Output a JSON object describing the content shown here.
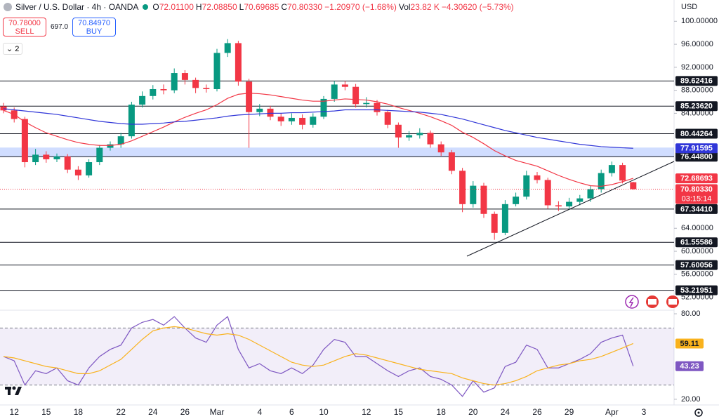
{
  "header": {
    "symbol": "Silver / U.S. Dollar · 4h · OANDA",
    "legend": [
      {
        "key": "O",
        "text": "72.01100"
      },
      {
        "key": "H",
        "text": "72.08850"
      },
      {
        "key": "L",
        "text": "70.69685"
      },
      {
        "key": "C",
        "text": "70.80330"
      },
      {
        "key": "",
        "text": "−1.20970 (−1.68%)"
      },
      {
        "key": "Vol",
        "text": "23.82 K"
      },
      {
        "key": "",
        "text": "−4.30620 (−5.73%)"
      }
    ],
    "indicator_count": "2",
    "currency": "USD"
  },
  "trade_panel": {
    "sell_price": "70.78000",
    "sell_label": "SELL",
    "spread": "697.0",
    "buy_price": "70.84970",
    "buy_label": "BUY"
  },
  "chart_data": [
    {
      "type": "candlestick",
      "categories": [
        null,
        "12",
        null,
        null,
        "15",
        null,
        null,
        "18",
        null,
        null,
        null,
        "22",
        null,
        null,
        "24",
        null,
        null,
        "26",
        null,
        null,
        "Mar",
        null,
        null,
        null,
        "4",
        null,
        null,
        "6",
        null,
        null,
        "10",
        null,
        null,
        null,
        "12",
        null,
        null,
        "15",
        null,
        null,
        null,
        "18",
        null,
        null,
        "20",
        null,
        null,
        "24",
        null,
        null,
        "26",
        null,
        null,
        "29",
        null,
        null,
        null,
        "Apr",
        null,
        null,
        "3"
      ],
      "open": [
        85.2,
        84.5,
        83.0,
        75.5,
        76.8,
        76.0,
        76.5,
        74.2,
        73.2,
        75.5,
        78.0,
        78.6,
        80.0,
        85.5,
        87.0,
        88.2,
        88.0,
        91.0,
        89.8,
        88.4,
        88.2,
        94.5,
        96.2,
        89.5,
        84.2,
        84.8,
        83.4,
        82.6,
        83.2,
        82.0,
        83.4,
        86.5,
        89.0,
        88.6,
        85.6,
        85.8,
        84.2,
        82.0,
        79.8,
        80.2,
        80.6,
        78.6,
        77.2,
        74.0,
        68.2,
        71.4,
        66.5,
        63.2,
        68.2,
        69.5,
        73.2,
        72.4,
        68.0,
        67.8,
        68.6,
        69.2,
        70.8,
        73.6,
        75.0,
        72.011,
        null
      ],
      "high": [
        85.8,
        85.0,
        83.4,
        77.8,
        77.4,
        77.0,
        76.9,
        74.8,
        76.0,
        78.5,
        79.1,
        80.6,
        86.0,
        87.8,
        88.9,
        89.0,
        91.8,
        91.5,
        90.2,
        89.0,
        95.2,
        96.9,
        96.6,
        90.0,
        85.6,
        85.3,
        84.0,
        84.0,
        83.8,
        84.0,
        87.0,
        89.6,
        89.6,
        89.1,
        86.8,
        86.3,
        84.6,
        82.4,
        80.9,
        81.4,
        81.0,
        79.1,
        77.6,
        74.5,
        72.2,
        71.9,
        66.9,
        68.9,
        70.2,
        74.0,
        73.8,
        72.8,
        68.7,
        69.3,
        69.8,
        71.4,
        74.2,
        75.6,
        75.4,
        72.0885,
        null
      ],
      "low": [
        84.0,
        82.4,
        74.6,
        75.0,
        75.4,
        75.5,
        73.6,
        72.4,
        72.8,
        75.0,
        77.5,
        78.0,
        79.6,
        85.0,
        86.4,
        87.3,
        87.5,
        89.0,
        87.5,
        87.6,
        87.8,
        93.8,
        88.8,
        78.0,
        83.5,
        82.8,
        81.8,
        82.0,
        81.2,
        81.5,
        83.0,
        86.0,
        88.0,
        85.0,
        85.0,
        83.6,
        81.4,
        78.0,
        79.2,
        79.6,
        78.0,
        76.6,
        73.4,
        66.8,
        67.6,
        65.8,
        62.0,
        62.8,
        67.8,
        69.0,
        71.8,
        67.4,
        67.0,
        67.2,
        68.0,
        68.6,
        70.2,
        73.0,
        71.8,
        70.69685,
        null
      ],
      "close": [
        84.5,
        83.0,
        75.5,
        76.8,
        76.0,
        76.5,
        74.2,
        73.2,
        75.5,
        78.0,
        78.6,
        80.0,
        85.5,
        87.0,
        88.2,
        88.0,
        91.0,
        89.8,
        88.4,
        88.2,
        94.5,
        96.2,
        89.5,
        84.2,
        84.8,
        83.4,
        82.6,
        83.2,
        82.0,
        83.4,
        86.5,
        89.0,
        88.6,
        85.6,
        85.8,
        84.2,
        82.0,
        79.8,
        80.2,
        80.6,
        78.6,
        77.2,
        74.0,
        68.2,
        71.4,
        66.5,
        63.2,
        68.2,
        69.5,
        73.2,
        72.4,
        68.0,
        67.8,
        68.6,
        69.2,
        70.8,
        73.6,
        75.0,
        72.3,
        70.8033,
        null
      ],
      "last_label": "70.80330",
      "countdown": "03:15:14",
      "up_color": "#089981",
      "down_color": "#f23645",
      "lines": [
        {
          "color": "#f23645",
          "values": [
            84.5,
            83.8,
            82.5,
            81.5,
            80.6,
            80.0,
            79.4,
            78.9,
            78.6,
            78.4,
            78.4,
            78.6,
            79.2,
            80.0,
            80.8,
            81.6,
            82.5,
            83.3,
            84.0,
            84.6,
            85.5,
            86.6,
            87.3,
            87.5,
            87.4,
            87.2,
            86.9,
            86.6,
            86.3,
            86.1,
            86.1,
            86.3,
            86.5,
            86.4,
            86.3,
            86.0,
            85.6,
            85.0,
            84.5,
            84.0,
            83.4,
            82.7,
            81.9,
            80.7,
            79.8,
            78.7,
            77.5,
            76.6,
            75.8,
            75.3,
            74.8,
            74.0,
            73.2,
            72.5,
            71.9,
            71.4,
            71.3,
            71.6,
            72.1,
            72.68693,
            null
          ]
        },
        {
          "color": "#3036d8",
          "values": [
            84.8,
            84.6,
            84.4,
            84.2,
            84.0,
            83.8,
            83.5,
            83.2,
            82.9,
            82.6,
            82.4,
            82.2,
            82.1,
            82.1,
            82.2,
            82.3,
            82.5,
            82.6,
            82.8,
            83.0,
            83.2,
            83.5,
            83.7,
            83.8,
            83.9,
            84.0,
            84.0,
            84.1,
            84.1,
            84.2,
            84.3,
            84.4,
            84.6,
            84.6,
            84.6,
            84.6,
            84.5,
            84.4,
            84.3,
            84.2,
            84.0,
            83.8,
            83.4,
            83.0,
            82.5,
            82.0,
            81.5,
            81.0,
            80.6,
            80.2,
            79.8,
            79.5,
            79.2,
            78.9,
            78.6,
            78.4,
            78.2,
            78.1,
            78.0,
            77.91595,
            null
          ]
        }
      ],
      "levels": [
        89.62416,
        {
          "value": 85.2362,
          "label": "85.23620"
        },
        80.44264,
        {
          "value": 76.448,
          "label": "76.44800"
        },
        {
          "value": 67.3441,
          "label": "67.34410"
        },
        61.55586,
        57.60056,
        53.21951
      ],
      "level_color": "#131722",
      "zone_color": "rgba(41,98,255,0.22)",
      "ylim": [
        49.75,
        103.7
      ],
      "yticks": [
        {
          "value": 100,
          "label": "100.00000"
        },
        {
          "value": 96,
          "label": "96.00000"
        },
        {
          "value": 92,
          "label": "92.00000"
        },
        {
          "value": 88,
          "label": "88.00000"
        },
        {
          "value": 84,
          "label": "84.00000"
        },
        {
          "value": 64,
          "label": "64.00000"
        },
        {
          "value": 60,
          "label": "60.00000"
        },
        {
          "value": 56,
          "label": "56.00000"
        },
        {
          "value": 52,
          "label": "52.00000"
        }
      ]
    },
    {
      "type": "line",
      "series": [
        {
          "color": "#7e57c2",
          "values": [
            50,
            47,
            30,
            40,
            38,
            42,
            33,
            30,
            42,
            50,
            55,
            58,
            70,
            74,
            76,
            72,
            78,
            70,
            63,
            60,
            72,
            78,
            55,
            42,
            45,
            40,
            38,
            42,
            38,
            44,
            55,
            62,
            60,
            50,
            50,
            45,
            40,
            36,
            40,
            42,
            36,
            34,
            30,
            22,
            33,
            25,
            28,
            43,
            46,
            58,
            55,
            42,
            42,
            45,
            48,
            52,
            60,
            63,
            65,
            43.23,
            null
          ]
        },
        {
          "color": "#f9b21d",
          "values": [
            50,
            49,
            47,
            45,
            43,
            42,
            40,
            38,
            38,
            40,
            44,
            48,
            55,
            62,
            68,
            70,
            71,
            70,
            68,
            66,
            65,
            66,
            65,
            62,
            58,
            54,
            50,
            46,
            44,
            43,
            44,
            47,
            50,
            52,
            51,
            49,
            47,
            45,
            43,
            41,
            40,
            39,
            38,
            35,
            33,
            31,
            30,
            31,
            33,
            36,
            40,
            42,
            44,
            45,
            47,
            48,
            50,
            53,
            56,
            59.11,
            null
          ]
        }
      ],
      "band": [
        30,
        70
      ],
      "band_color": "rgba(126,87,194,0.1)",
      "ylim": [
        16,
        82.5
      ],
      "yticks": [
        {
          "value": 80,
          "label": "80.00"
        },
        {
          "value": 20,
          "label": "20.00"
        }
      ]
    }
  ]
}
